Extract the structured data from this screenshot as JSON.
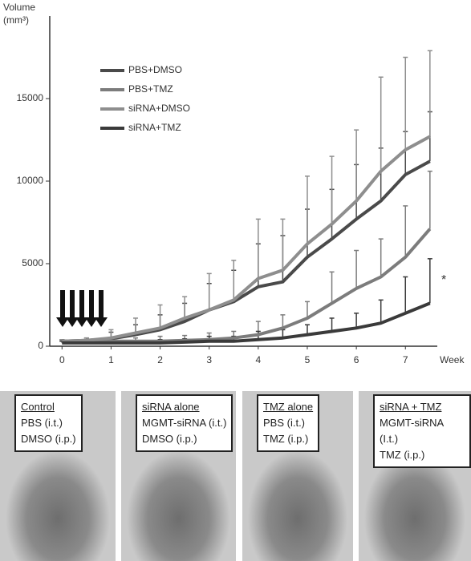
{
  "chart_data": {
    "type": "line",
    "y_label": "Volume",
    "y_unit": "(mm³)",
    "x_label": "Week",
    "annotation": "*",
    "x": [
      0,
      0.5,
      1,
      1.5,
      2,
      2.5,
      3,
      3.5,
      4,
      4.5,
      5,
      5.5,
      6,
      6.5,
      7,
      7.5
    ],
    "xlim": [
      -0.25,
      7.65
    ],
    "xticks": [
      0,
      1,
      2,
      3,
      4,
      5,
      6,
      7
    ],
    "ylim": [
      0,
      20000
    ],
    "yticks": [
      0,
      5000,
      10000,
      15000
    ],
    "series": [
      {
        "name": "PBS+DMSO",
        "color": "#4a4a4a",
        "values": [
          300,
          350,
          450,
          700,
          1000,
          1500,
          2200,
          2700,
          3600,
          3900,
          5400,
          6500,
          7700,
          8800,
          10400,
          11200
        ],
        "errors": [
          100,
          150,
          400,
          600,
          900,
          1100,
          1600,
          1900,
          2600,
          2800,
          2900,
          3000,
          3300,
          3200,
          2600,
          3000
        ]
      },
      {
        "name": "PBS+TMZ",
        "color": "#7c7c7c",
        "values": [
          250,
          250,
          300,
          300,
          300,
          350,
          400,
          500,
          700,
          1100,
          1700,
          2600,
          3500,
          4200,
          5400,
          7100
        ],
        "errors": [
          100,
          100,
          200,
          200,
          300,
          300,
          400,
          400,
          800,
          800,
          1000,
          1900,
          2300,
          2300,
          3100,
          3500
        ]
      },
      {
        "name": "siRNA+DMSO",
        "color": "#8e8e8e",
        "values": [
          300,
          350,
          500,
          800,
          1100,
          1700,
          2200,
          2800,
          4100,
          4600,
          6200,
          7400,
          8800,
          10600,
          11900,
          12700
        ],
        "errors": [
          100,
          150,
          500,
          900,
          1400,
          1300,
          2200,
          2400,
          3600,
          3100,
          4100,
          4100,
          4300,
          5700,
          5600,
          5200
        ]
      },
      {
        "name": "siRNA+TMZ",
        "color": "#3a3a3a",
        "values": [
          200,
          200,
          200,
          200,
          200,
          250,
          300,
          300,
          400,
          500,
          700,
          900,
          1100,
          1400,
          2000,
          2600
        ],
        "errors": [
          100,
          100,
          100,
          150,
          200,
          200,
          300,
          300,
          500,
          500,
          600,
          800,
          900,
          1400,
          2200,
          2700
        ]
      }
    ]
  },
  "panels": [
    {
      "title": "Control",
      "lines": [
        "PBS (i.t.)",
        "DMSO (i.p.)"
      ]
    },
    {
      "title": "siRNA alone",
      "lines": [
        "MGMT-siRNA (i.t.)",
        "DMSO (i.p.)"
      ]
    },
    {
      "title": "TMZ alone",
      "lines": [
        "PBS (i.t.)",
        "TMZ (i.p.)"
      ]
    },
    {
      "title": "siRNA + TMZ",
      "lines": [
        "MGMT-siRNA (I.t.)",
        "TMZ (i.p.)"
      ]
    }
  ]
}
